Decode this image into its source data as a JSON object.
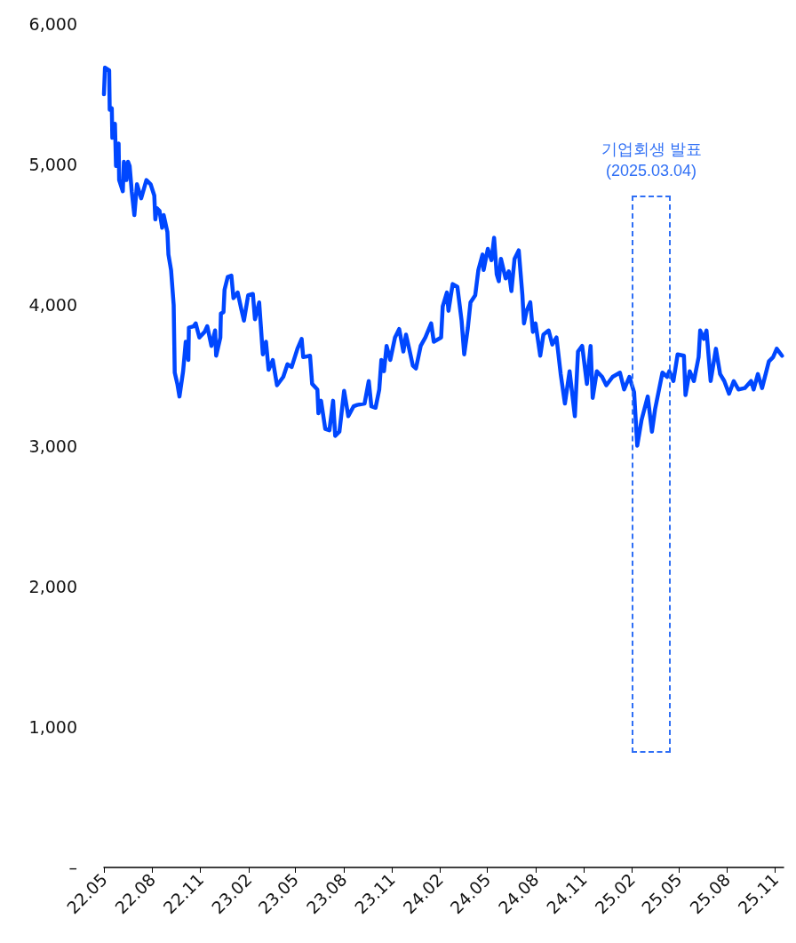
{
  "chart_data": {
    "type": "line",
    "x": [
      "2022-05-01",
      "2022-05-03",
      "2022-05-11",
      "2022-05-12",
      "2022-05-16",
      "2022-05-17",
      "2022-05-22",
      "2022-05-24",
      "2022-05-29",
      "2022-05-30",
      "2022-06-06",
      "2022-06-08",
      "2022-06-13",
      "2022-06-16",
      "2022-06-19",
      "2022-06-23",
      "2022-06-28",
      "2022-07-03",
      "2022-07-11",
      "2022-07-21",
      "2022-07-29",
      "2022-08-05",
      "2022-08-07",
      "2022-08-10",
      "2022-08-15",
      "2022-08-20",
      "2022-08-23",
      "2022-08-30",
      "2022-09-01",
      "2022-09-06",
      "2022-09-11",
      "2022-09-13",
      "2022-09-18",
      "2022-09-22",
      "2022-09-29",
      "2022-10-04",
      "2022-10-09",
      "2022-10-10",
      "2022-10-19",
      "2022-10-23",
      "2022-10-30",
      "2022-11-09",
      "2022-11-14",
      "2022-11-22",
      "2022-11-29",
      "2022-12-01",
      "2022-12-09",
      "2022-12-10",
      "2022-12-15",
      "2022-12-17",
      "2022-12-23",
      "2022-12-30",
      "2023-01-03",
      "2023-01-11",
      "2023-01-18",
      "2023-01-23",
      "2023-01-31",
      "2023-02-09",
      "2023-02-13",
      "2023-02-21",
      "2023-02-28",
      "2023-03-06",
      "2023-03-11",
      "2023-03-19",
      "2023-03-27",
      "2023-04-08",
      "2023-04-16",
      "2023-04-24",
      "2023-05-05",
      "2023-05-13",
      "2023-05-16",
      "2023-05-29",
      "2023-06-02",
      "2023-06-12",
      "2023-06-14",
      "2023-06-19",
      "2023-06-27",
      "2023-07-05",
      "2023-07-12",
      "2023-07-16",
      "2023-07-24",
      "2023-08-02",
      "2023-08-10",
      "2023-08-20",
      "2023-08-27",
      "2023-09-10",
      "2023-09-18",
      "2023-09-23",
      "2023-10-01",
      "2023-10-08",
      "2023-10-12",
      "2023-10-17",
      "2023-10-22",
      "2023-10-29",
      "2023-11-07",
      "2023-11-15",
      "2023-11-23",
      "2023-11-28",
      "2023-12-04",
      "2023-12-11",
      "2023-12-17",
      "2023-12-26",
      "2024-01-04",
      "2024-01-15",
      "2024-01-20",
      "2024-02-03",
      "2024-02-06",
      "2024-02-14",
      "2024-02-17",
      "2024-02-25",
      "2024-03-05",
      "2024-03-13",
      "2024-03-18",
      "2024-03-25",
      "2024-03-30",
      "2024-04-08",
      "2024-04-14",
      "2024-04-22",
      "2024-04-24",
      "2024-05-02",
      "2024-05-09",
      "2024-05-14",
      "2024-05-19",
      "2024-05-23",
      "2024-05-27",
      "2024-06-05",
      "2024-06-11",
      "2024-06-16",
      "2024-06-22",
      "2024-06-30",
      "2024-07-07",
      "2024-07-10",
      "2024-07-15",
      "2024-07-22",
      "2024-07-27",
      "2024-08-01",
      "2024-08-10",
      "2024-08-16",
      "2024-08-26",
      "2024-09-02",
      "2024-09-10",
      "2024-09-18",
      "2024-09-26",
      "2024-10-05",
      "2024-10-15",
      "2024-10-21",
      "2024-10-29",
      "2024-11-07",
      "2024-11-14",
      "2024-11-18",
      "2024-11-26",
      "2024-12-06",
      "2024-12-14",
      "2024-12-26",
      "2025-01-09",
      "2025-01-17",
      "2025-01-27",
      "2025-02-05",
      "2025-02-11",
      "2025-02-19",
      "2025-02-26",
      "2025-03-03",
      "2025-03-11",
      "2025-03-17",
      "2025-03-31",
      "2025-04-09",
      "2025-04-13",
      "2025-04-21",
      "2025-04-29",
      "2025-05-11",
      "2025-05-14",
      "2025-05-22",
      "2025-05-30",
      "2025-06-08",
      "2025-06-11",
      "2025-06-18",
      "2025-06-23",
      "2025-07-01",
      "2025-07-11",
      "2025-07-19",
      "2025-07-27",
      "2025-08-05",
      "2025-08-14",
      "2025-08-23",
      "2025-09-04",
      "2025-09-16",
      "2025-09-21",
      "2025-09-29",
      "2025-10-07",
      "2025-10-20",
      "2025-10-28",
      "2025-11-04",
      "2025-11-14"
    ],
    "series": [
      {
        "color": "#0047ff",
        "values": [
          5500,
          5690,
          5670,
          5390,
          5400,
          5190,
          5290,
          4990,
          5150,
          4890,
          4810,
          5020,
          4890,
          5020,
          4990,
          4810,
          4640,
          4860,
          4760,
          4890,
          4860,
          4780,
          4610,
          4690,
          4670,
          4550,
          4640,
          4520,
          4360,
          4250,
          4000,
          3520,
          3440,
          3350,
          3530,
          3740,
          3610,
          3840,
          3850,
          3870,
          3770,
          3810,
          3850,
          3710,
          3820,
          3640,
          3770,
          3940,
          3950,
          4110,
          4200,
          4210,
          4050,
          4090,
          3970,
          3890,
          4070,
          4080,
          3900,
          4020,
          3650,
          3740,
          3540,
          3610,
          3430,
          3490,
          3580,
          3560,
          3690,
          3760,
          3630,
          3640,
          3440,
          3400,
          3230,
          3320,
          3120,
          3110,
          3320,
          3070,
          3100,
          3390,
          3210,
          3280,
          3290,
          3300,
          3460,
          3280,
          3270,
          3400,
          3610,
          3530,
          3710,
          3610,
          3770,
          3830,
          3670,
          3790,
          3690,
          3570,
          3550,
          3710,
          3770,
          3870,
          3740,
          3770,
          3990,
          4090,
          3960,
          4150,
          4130,
          3890,
          3650,
          3840,
          4020,
          4070,
          4250,
          4360,
          4250,
          4400,
          4320,
          4480,
          4220,
          4170,
          4330,
          4190,
          4240,
          4100,
          4330,
          4390,
          4070,
          3870,
          3960,
          4020,
          3810,
          3870,
          3640,
          3790,
          3820,
          3720,
          3770,
          3510,
          3300,
          3530,
          3210,
          3670,
          3710,
          3440,
          3710,
          3340,
          3530,
          3490,
          3430,
          3490,
          3520,
          3400,
          3490,
          3380,
          3000,
          3180,
          3280,
          3350,
          3100,
          3260,
          3520,
          3490,
          3530,
          3460,
          3650,
          3640,
          3360,
          3530,
          3460,
          3630,
          3820,
          3760,
          3820,
          3460,
          3690,
          3510,
          3460,
          3370,
          3460,
          3400,
          3410,
          3460,
          3400,
          3510,
          3410,
          3600,
          3630,
          3690,
          3640
        ]
      }
    ],
    "xlim": [
      "2022-05-01",
      "2025-11-17"
    ],
    "xticks": [
      {
        "value": "2022-05-01",
        "label": "22.05"
      },
      {
        "value": "2022-08-01",
        "label": "22.08"
      },
      {
        "value": "2022-11-01",
        "label": "22.11"
      },
      {
        "value": "2023-02-01",
        "label": "23.02"
      },
      {
        "value": "2023-05-01",
        "label": "23.05"
      },
      {
        "value": "2023-08-01",
        "label": "23.08"
      },
      {
        "value": "2023-11-01",
        "label": "23.11"
      },
      {
        "value": "2024-02-01",
        "label": "24.02"
      },
      {
        "value": "2024-05-01",
        "label": "24.05"
      },
      {
        "value": "2024-08-01",
        "label": "24.08"
      },
      {
        "value": "2024-11-01",
        "label": "24.11"
      },
      {
        "value": "2025-02-01",
        "label": "25.02"
      },
      {
        "value": "2025-05-01",
        "label": "25.05"
      },
      {
        "value": "2025-08-01",
        "label": "25.08"
      },
      {
        "value": "2025-11-01",
        "label": "25.11"
      }
    ],
    "ylim": [
      0,
      6000
    ],
    "yticks": [
      {
        "value": 0,
        "label": "–"
      },
      {
        "value": 1000,
        "label": "1,000"
      },
      {
        "value": 2000,
        "label": "2,000"
      },
      {
        "value": 3000,
        "label": "3,000"
      },
      {
        "value": 4000,
        "label": "4,000"
      },
      {
        "value": 5000,
        "label": "5,000"
      },
      {
        "value": 6000,
        "label": "6,000"
      }
    ],
    "annotations": [
      "기업회생 발표\n(2025.03.04)"
    ],
    "grid": false,
    "marker": "none",
    "line_style": "solid"
  }
}
